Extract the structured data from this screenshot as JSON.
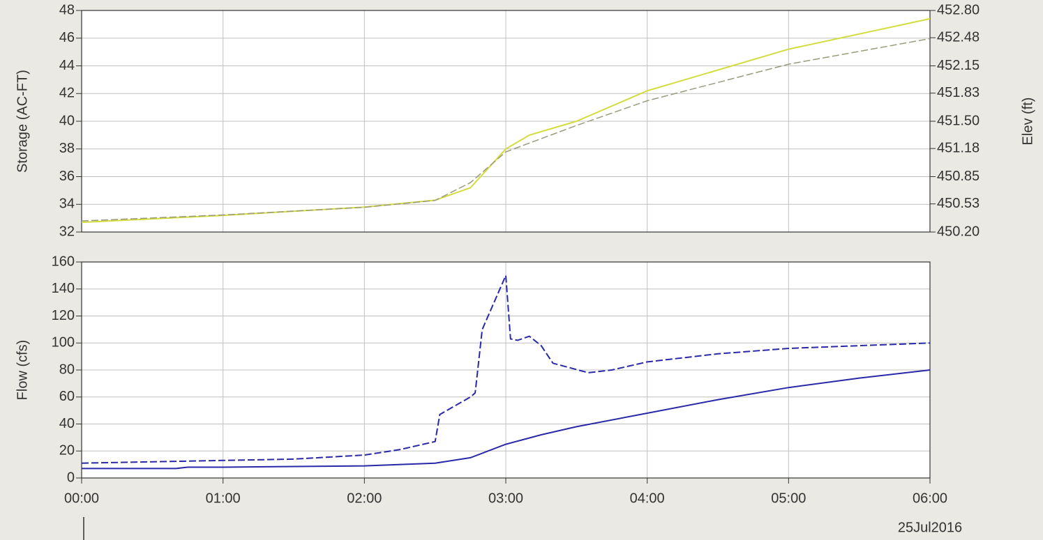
{
  "chart_data": [
    {
      "type": "line",
      "ylabel": "Storage (AC-FT)",
      "y2label": "Elev (ft)",
      "xlim": [
        "00:00",
        "06:00"
      ],
      "xticks": [
        "00:00",
        "01:00",
        "02:00",
        "03:00",
        "04:00",
        "05:00",
        "06:00"
      ],
      "ylim": [
        32,
        48
      ],
      "yticks": [
        32,
        34,
        36,
        38,
        40,
        42,
        44,
        46,
        48
      ],
      "y2lim": [
        450.2,
        452.8
      ],
      "y2ticks": [
        {
          "value": 450.2,
          "label": "450.20"
        },
        450.53,
        450.85,
        451.18,
        {
          "value": 451.5,
          "label": "451.50"
        },
        451.83,
        452.15,
        452.48,
        {
          "value": 452.8,
          "label": "452.80"
        }
      ],
      "grid": true,
      "series": [
        {
          "color": "#d2dc3c",
          "dash": false,
          "x": [
            "00:00",
            "01:00",
            "02:00",
            "02:30",
            "02:45",
            "03:00",
            "03:10",
            "03:30",
            "04:00",
            "05:00",
            "06:00"
          ],
          "values": [
            32.7,
            33.2,
            33.8,
            34.3,
            35.2,
            38,
            39,
            40,
            42.2,
            45.2,
            47.4
          ]
        },
        {
          "color": "#9a9a7a",
          "dash": true,
          "axis": "y2",
          "x": [
            "00:00",
            "01:00",
            "02:00",
            "02:30",
            "02:45",
            "03:00",
            "03:30",
            "04:00",
            "05:00",
            "06:00"
          ],
          "values": [
            450.33,
            450.4,
            450.49,
            450.57,
            450.78,
            451.14,
            451.45,
            451.74,
            452.17,
            452.47
          ]
        }
      ]
    },
    {
      "type": "line",
      "ylabel": "Flow (cfs)",
      "x_date_label": "25Jul2016",
      "xlim": [
        "00:00",
        "06:00"
      ],
      "xticks": [
        "00:00",
        "01:00",
        "02:00",
        "03:00",
        "04:00",
        "05:00",
        "06:00"
      ],
      "ylim": [
        0,
        160
      ],
      "yticks": [
        0,
        20,
        40,
        60,
        80,
        100,
        120,
        140,
        160
      ],
      "grid": true,
      "series": [
        {
          "color": "#2828a8",
          "dash": true,
          "x": [
            "00:00",
            "01:00",
            "01:30",
            "02:00",
            "02:15",
            "02:30",
            "02:32",
            "02:40",
            "02:45",
            "02:47",
            "02:50",
            "03:00",
            "03:02",
            "03:05",
            "03:10",
            "03:15",
            "03:20",
            "03:35",
            "03:45",
            "04:00",
            "04:30",
            "05:00",
            "05:30",
            "06:00"
          ],
          "values": [
            11,
            13,
            14,
            17,
            21,
            27,
            47,
            55,
            60,
            63,
            110,
            150,
            103,
            102,
            105,
            98,
            85,
            78,
            80,
            86,
            92,
            96,
            98,
            100
          ]
        },
        {
          "color": "#2828a8",
          "dash": false,
          "x": [
            "00:00",
            "00:40",
            "00:45",
            "01:00",
            "02:00",
            "02:30",
            "02:45",
            "03:00",
            "03:15",
            "03:30",
            "04:00",
            "04:30",
            "05:00",
            "05:30",
            "06:00"
          ],
          "values": [
            7,
            7,
            8,
            8,
            9,
            11,
            15,
            25,
            32,
            38,
            48,
            58,
            67,
            74,
            80
          ]
        }
      ]
    }
  ]
}
